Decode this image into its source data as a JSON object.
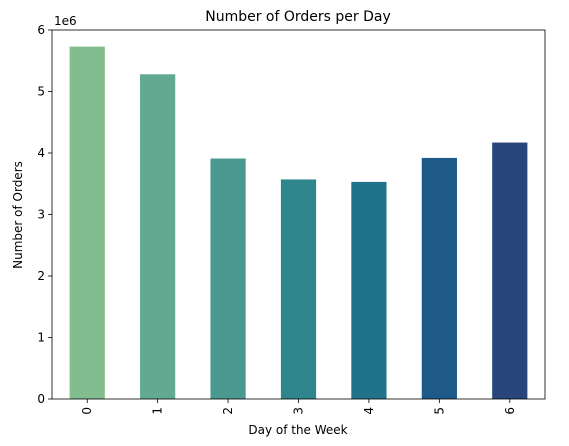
{
  "chart_data": {
    "type": "bar",
    "title": "Number of Orders per Day",
    "xlabel": "Day of the Week",
    "ylabel": "Number of Orders",
    "y_offset_text": "1e6",
    "categories": [
      "0",
      "1",
      "2",
      "3",
      "4",
      "5",
      "6"
    ],
    "values": [
      5.73,
      5.28,
      3.91,
      3.57,
      3.53,
      3.92,
      4.17
    ],
    "colors": [
      "#82bd8f",
      "#63a991",
      "#4a9990",
      "#2f858c",
      "#20738a",
      "#1d5a87",
      "#29467c"
    ],
    "ylim": [
      0,
      6
    ],
    "yticks": [
      0,
      1,
      2,
      3,
      4,
      5,
      6
    ],
    "grid": false,
    "legend": false
  }
}
